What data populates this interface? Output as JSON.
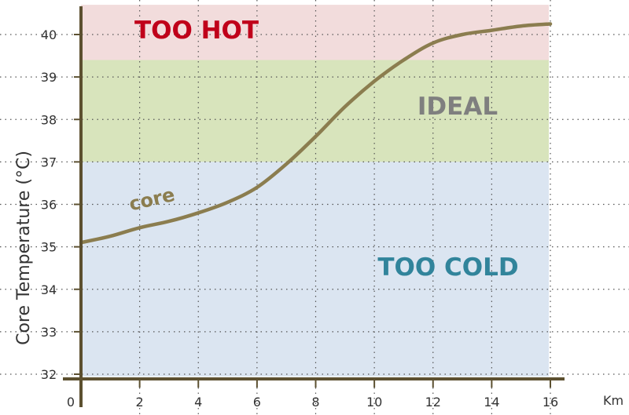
{
  "chart_data": {
    "type": "line",
    "title": "",
    "xlabel": "Km",
    "ylabel": "Core Temperature (°C)",
    "xlim": [
      0,
      16
    ],
    "ylim": [
      32,
      40.6
    ],
    "x_ticks": [
      "0",
      "2",
      "4",
      "6",
      "8",
      "10",
      "12",
      "14",
      "16"
    ],
    "y_ticks": [
      "32",
      "33",
      "34",
      "35",
      "36",
      "37",
      "38",
      "39",
      "40"
    ],
    "grid": true,
    "zones": [
      {
        "label": "TOO HOT",
        "from": 39.4,
        "to": 40.7,
        "color": "#f2dcdc",
        "label_color": "#c0001a"
      },
      {
        "label": "IDEAL",
        "from": 37.0,
        "to": 39.4,
        "color": "#d8e4bc",
        "label_color": "#7f7f7f"
      },
      {
        "label": "TOO COLD",
        "from": 31.9,
        "to": 37.0,
        "color": "#dbe5f1",
        "label_color": "#31849b"
      }
    ],
    "series": [
      {
        "name": "core",
        "color": "#8b7d4f",
        "x": [
          0,
          1,
          2,
          3,
          4,
          5,
          6,
          7,
          8,
          9,
          10,
          11,
          12,
          13,
          14,
          15,
          16
        ],
        "y": [
          35.1,
          35.25,
          35.45,
          35.6,
          35.8,
          36.05,
          36.4,
          36.95,
          37.6,
          38.3,
          38.9,
          39.4,
          39.8,
          40.0,
          40.1,
          40.2,
          40.25
        ]
      }
    ],
    "axis_color": "#5c5030"
  }
}
